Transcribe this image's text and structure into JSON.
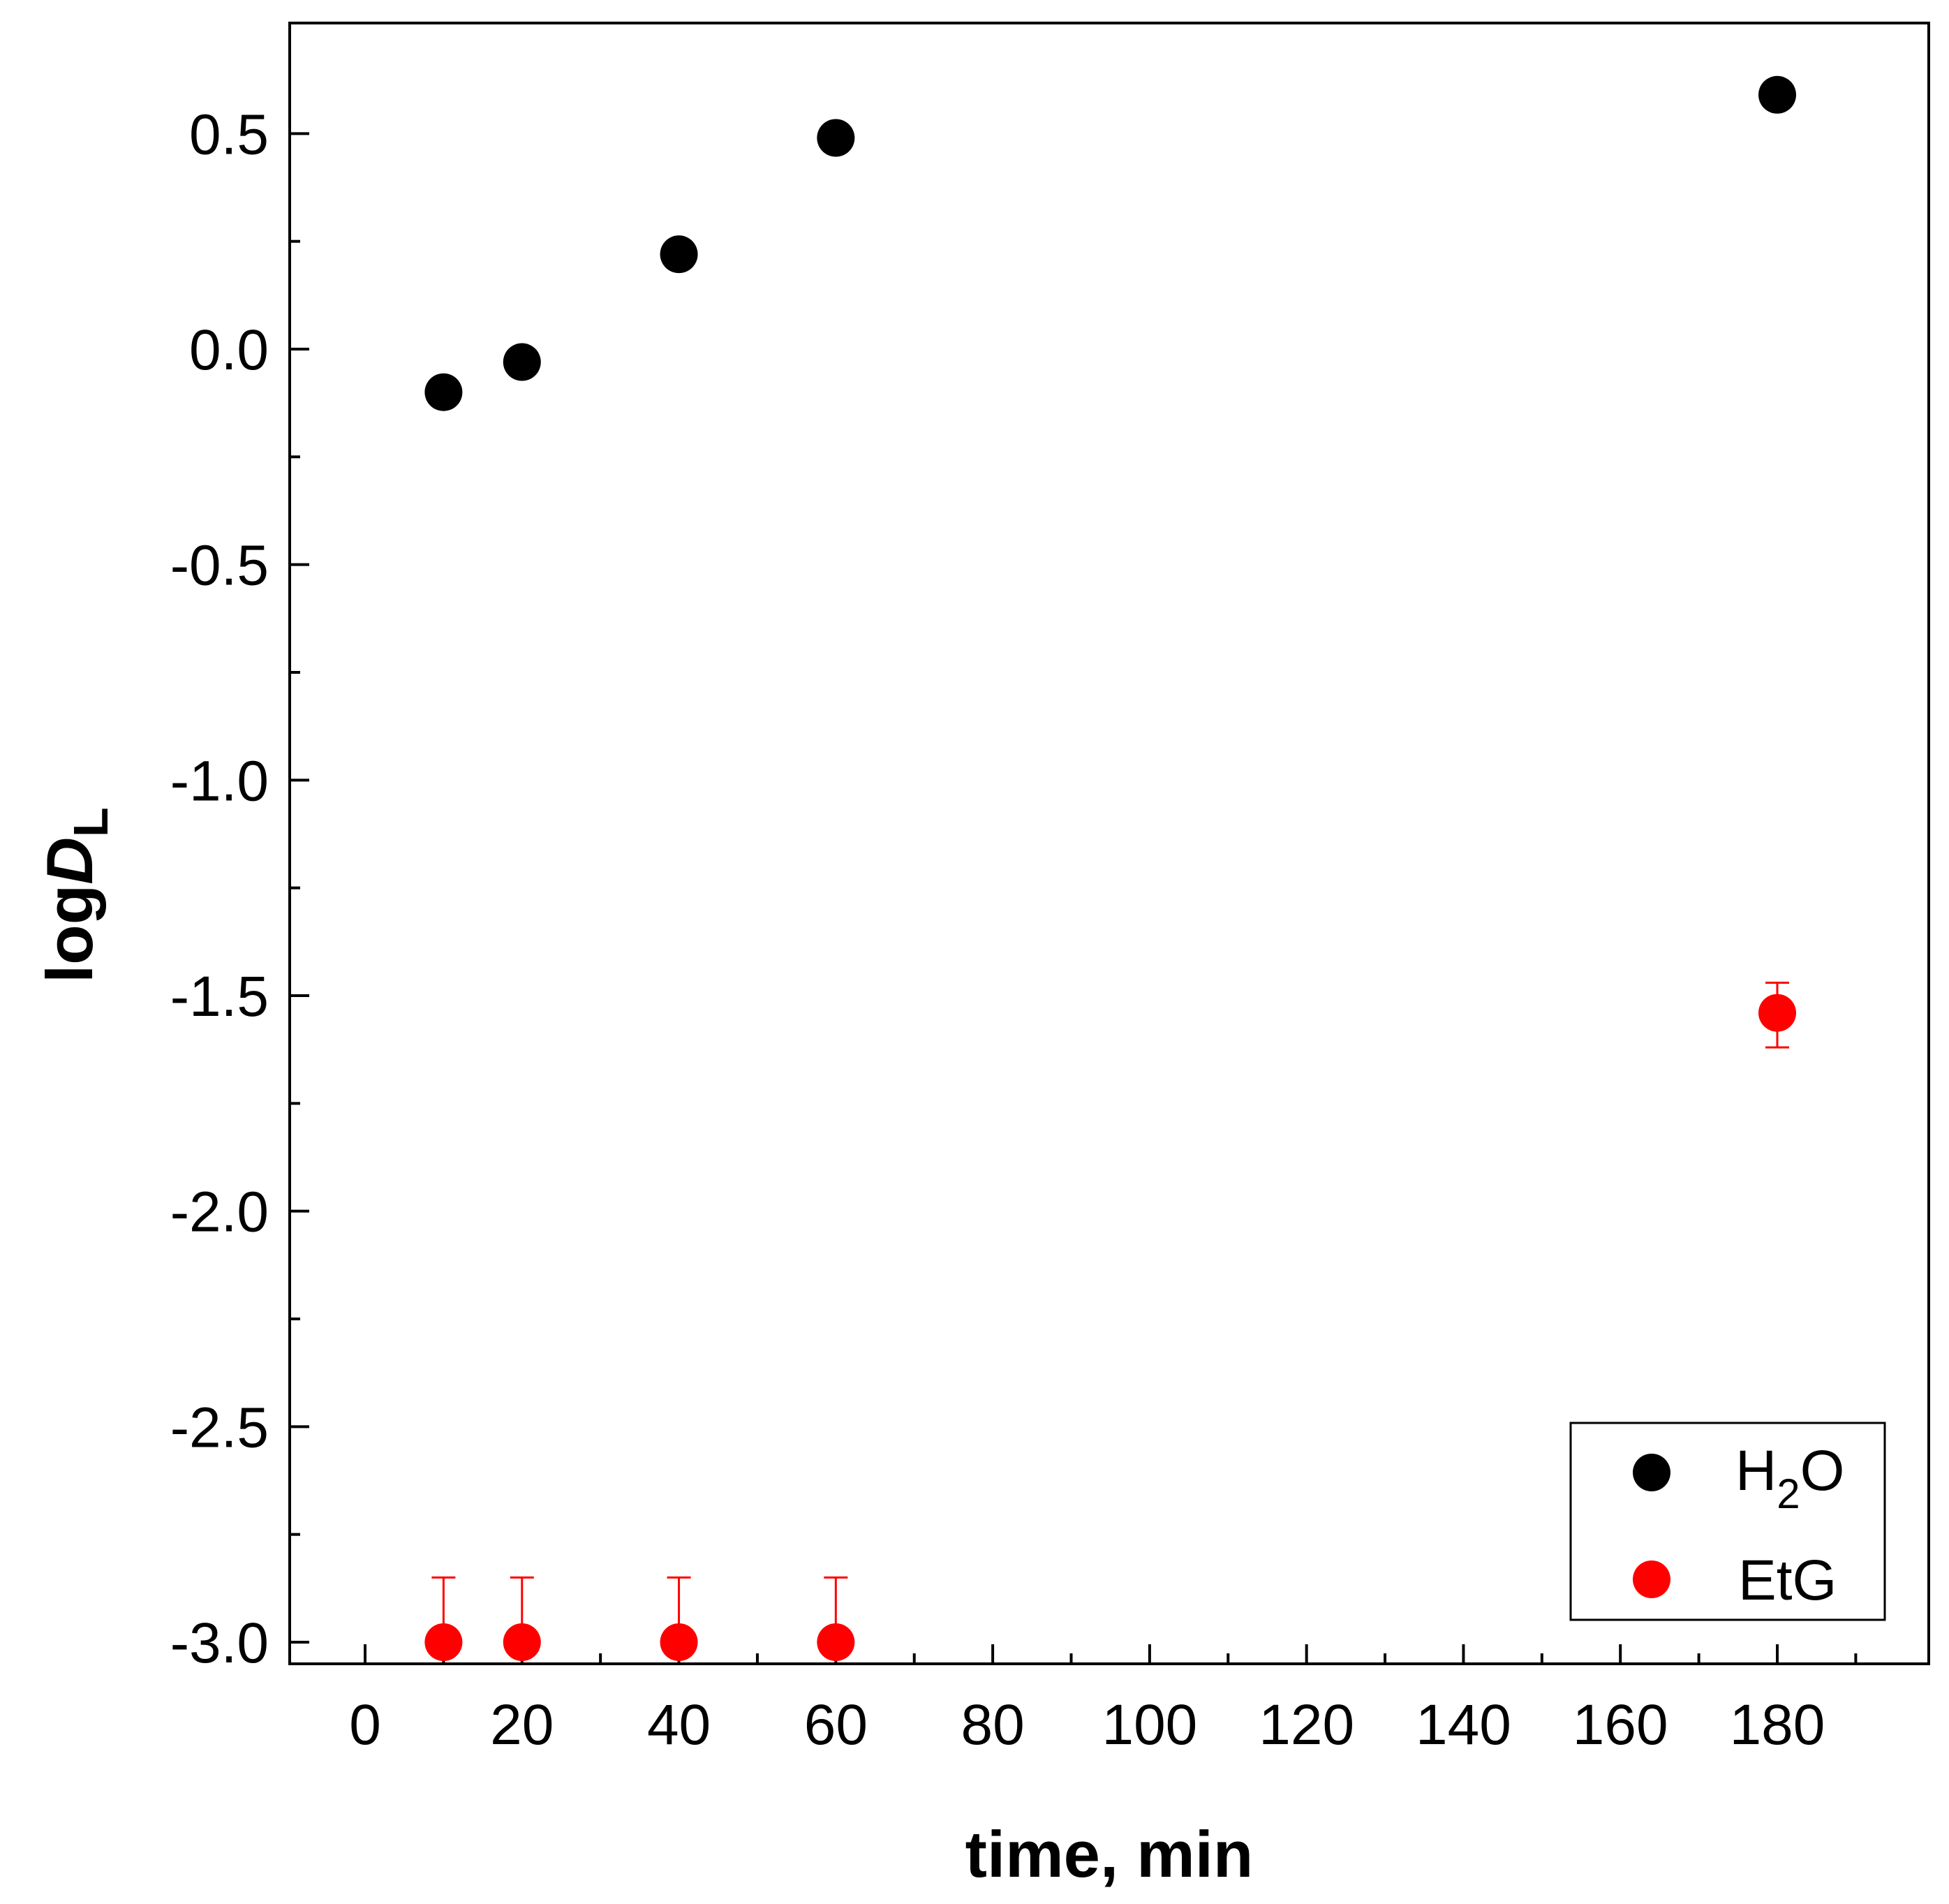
{
  "chart_data": {
    "type": "scatter",
    "title": "",
    "xlabel": "time, min",
    "ylabel": {
      "prefix": "log",
      "italic": "D",
      "subscript": "L"
    },
    "xlim": [
      -10,
      200
    ],
    "ylim": [
      -3.05,
      0.75
    ],
    "x_ticks": [
      0,
      20,
      40,
      60,
      80,
      100,
      120,
      140,
      160,
      180
    ],
    "x_tick_labels": [
      "0",
      "20",
      "40",
      "60",
      "80",
      "100",
      "120",
      "140",
      "160",
      "180"
    ],
    "x_minor_ticks": [
      10,
      30,
      50,
      70,
      90,
      110,
      130,
      150,
      170,
      190
    ],
    "y_ticks": [
      -3.0,
      -2.5,
      -2.0,
      -1.5,
      -1.0,
      -0.5,
      0.0,
      0.5
    ],
    "y_tick_labels": [
      "-3.0",
      "-2.5",
      "-2.0",
      "-1.5",
      "-1.0",
      "-0.5",
      "0.0",
      "0.5"
    ],
    "y_minor_ticks": [
      -2.75,
      -2.25,
      -1.75,
      -1.25,
      -0.75,
      -0.25,
      0.25
    ],
    "grid": false,
    "legend_position": "bottom-right",
    "series": [
      {
        "name": "H2O",
        "legend_main": "H",
        "legend_sub": "2",
        "legend_tail": "O",
        "color": "#000000",
        "x": [
          10,
          20,
          40,
          60,
          180
        ],
        "y": [
          -0.1,
          -0.03,
          0.22,
          0.49,
          0.59
        ]
      },
      {
        "name": "EtG",
        "legend_main": "EtG",
        "legend_sub": "",
        "legend_tail": "",
        "color": "#ff0000",
        "x": [
          10,
          20,
          40,
          60,
          180
        ],
        "y": [
          -3.0,
          -3.0,
          -3.0,
          -3.0,
          -1.54
        ],
        "err_plus": [
          0.15,
          0.15,
          0.15,
          0.15,
          0.07
        ],
        "err_minus": [
          0,
          0,
          0,
          0,
          0.08
        ]
      }
    ]
  }
}
